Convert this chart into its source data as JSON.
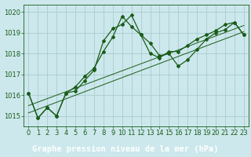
{
  "background_color": "#cce8ec",
  "grid_color": "#aaccd0",
  "line_color": "#1a5c1a",
  "xlabel": "Graphe pression niveau de la mer (hPa)",
  "xlabel_bg": "#2d6e2d",
  "xlabel_fontsize": 7.5,
  "tick_fontsize": 6,
  "ylim": [
    1014.5,
    1020.35
  ],
  "yticks": [
    1015,
    1016,
    1017,
    1018,
    1019,
    1020
  ],
  "xlim": [
    -0.5,
    23.5
  ],
  "xticks": [
    0,
    1,
    2,
    3,
    4,
    5,
    6,
    7,
    8,
    9,
    10,
    11,
    12,
    13,
    14,
    15,
    16,
    17,
    18,
    19,
    20,
    21,
    22,
    23
  ],
  "series1": {
    "x": [
      0,
      1,
      2,
      3,
      4,
      5,
      6,
      7,
      8,
      9,
      10,
      11,
      12,
      13,
      14,
      15,
      16,
      17,
      18,
      19,
      20,
      21,
      22,
      23
    ],
    "y": [
      1016.1,
      1014.9,
      1015.4,
      1015.0,
      1016.1,
      1016.2,
      1016.7,
      1017.2,
      1018.6,
      1019.2,
      1019.4,
      1019.85,
      1018.9,
      1018.5,
      1017.9,
      1018.0,
      1017.4,
      1017.7,
      1018.2,
      1018.7,
      1019.0,
      1019.15,
      1019.5,
      1018.9
    ]
  },
  "series2": {
    "x": [
      0,
      1,
      2,
      3,
      4,
      5,
      6,
      7,
      8,
      9,
      10,
      11,
      12,
      13,
      14,
      15,
      16,
      17,
      18,
      19,
      20,
      21,
      22,
      23
    ],
    "y": [
      1016.1,
      1014.9,
      1015.4,
      1015.0,
      1016.1,
      1016.4,
      1016.9,
      1017.3,
      1018.1,
      1018.8,
      1019.8,
      1019.3,
      1018.9,
      1018.0,
      1017.8,
      1018.1,
      1018.1,
      1018.4,
      1018.7,
      1018.9,
      1019.1,
      1019.4,
      1019.5,
      1018.9
    ]
  },
  "series3": {
    "x": [
      0,
      23
    ],
    "y": [
      1015.5,
      1019.35
    ]
  },
  "series4": {
    "x": [
      0,
      23
    ],
    "y": [
      1015.15,
      1019.05
    ]
  }
}
